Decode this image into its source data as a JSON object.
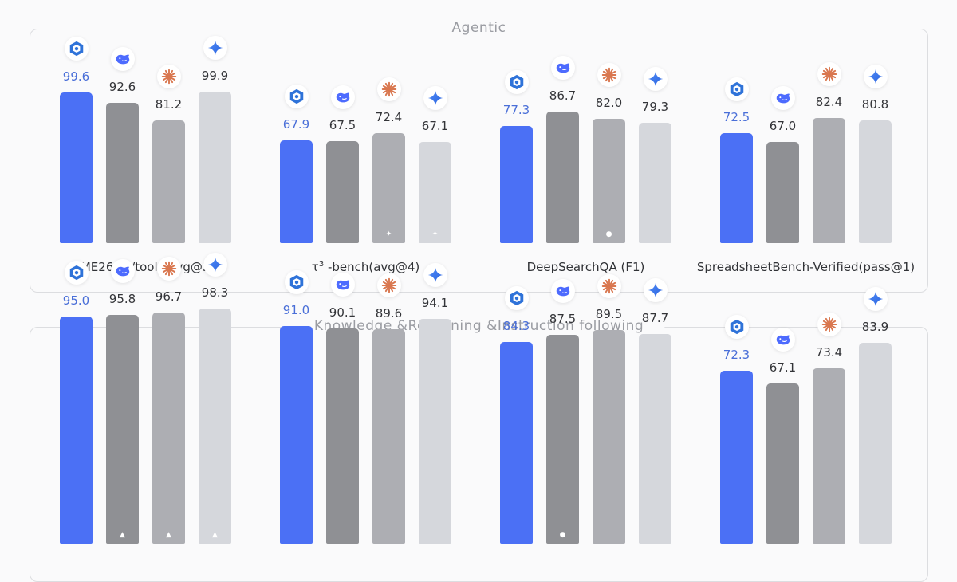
{
  "colors": {
    "model_1": "#4b70f5",
    "model_2": "#8f9094",
    "model_3": "#adaeb3",
    "model_4": "#d5d7dc",
    "value_model_1": "#4a6fd8"
  },
  "model_icons": [
    "cube-logo-icon",
    "whale-logo-icon",
    "orange-starburst-logo-icon",
    "blue-sparkle-logo-icon"
  ],
  "sections": [
    {
      "title": "Agentic",
      "groups": [
        {
          "label": "AIME26  w/tools(avg@32)",
          "values": [
            "99.6",
            "92.6",
            "81.2",
            "99.9"
          ],
          "markers": [
            "",
            "",
            "",
            ""
          ]
        },
        {
          "label_prefix": "τ",
          "label_sup": "3",
          "label": " -bench(avg@4)",
          "values": [
            "67.9",
            "67.5",
            "72.4",
            "67.1"
          ],
          "markers": [
            "",
            "",
            "✦",
            "✦"
          ]
        },
        {
          "label": "DeepSearchQA (F1)",
          "values": [
            "77.3",
            "86.7",
            "82.0",
            "79.3"
          ],
          "markers": [
            "",
            "",
            "●",
            ""
          ]
        },
        {
          "label": "SpreadsheetBench-Verified(pass@1)",
          "values": [
            "72.5",
            "67.0",
            "82.4",
            "80.8"
          ],
          "markers": [
            "",
            "",
            "",
            ""
          ]
        }
      ]
    },
    {
      "title": "Knowledge &Reasoning &Instruction following",
      "groups": [
        {
          "label": "",
          "values": [
            "95.0",
            "95.8",
            "96.7",
            "98.3"
          ],
          "markers": [
            "",
            "▲",
            "▲",
            "▲"
          ]
        },
        {
          "label": "",
          "values": [
            "91.0",
            "90.1",
            "89.6",
            "94.1"
          ],
          "markers": [
            "",
            "",
            "",
            ""
          ]
        },
        {
          "label": "",
          "values": [
            "84.3",
            "87.5",
            "89.5",
            "87.7"
          ],
          "markers": [
            "",
            "●",
            "",
            ""
          ]
        },
        {
          "label": "",
          "values": [
            "72.3",
            "67.1",
            "73.4",
            "83.9"
          ],
          "markers": [
            "",
            "",
            "",
            ""
          ]
        }
      ]
    }
  ],
  "chart_data": [
    {
      "type": "bar",
      "title": "Agentic",
      "categories": [
        "AIME26  w/tools(avg@32)",
        "τ3 -bench(avg@4)",
        "DeepSearchQA (F1)",
        "SpreadsheetBench-Verified(pass@1)"
      ],
      "series": [
        {
          "values": [
            99.6,
            67.9,
            77.3,
            72.5
          ]
        },
        {
          "values": [
            92.6,
            67.5,
            86.7,
            67.0
          ]
        },
        {
          "values": [
            81.2,
            72.4,
            82.0,
            82.4
          ]
        },
        {
          "values": [
            99.9,
            67.1,
            79.3,
            80.8
          ]
        }
      ],
      "grid": false,
      "per_group_independent_scale": true
    },
    {
      "type": "bar",
      "title": "Knowledge &Reasoning &Instruction following",
      "categories": [
        "",
        "",
        "",
        ""
      ],
      "series": [
        {
          "values": [
            95.0,
            91.0,
            84.3,
            72.3
          ]
        },
        {
          "values": [
            95.8,
            90.1,
            87.5,
            67.1
          ]
        },
        {
          "values": [
            96.7,
            89.6,
            89.5,
            73.4
          ]
        },
        {
          "values": [
            98.3,
            94.1,
            87.7,
            83.9
          ]
        }
      ],
      "grid": false,
      "per_group_independent_scale": true
    }
  ]
}
